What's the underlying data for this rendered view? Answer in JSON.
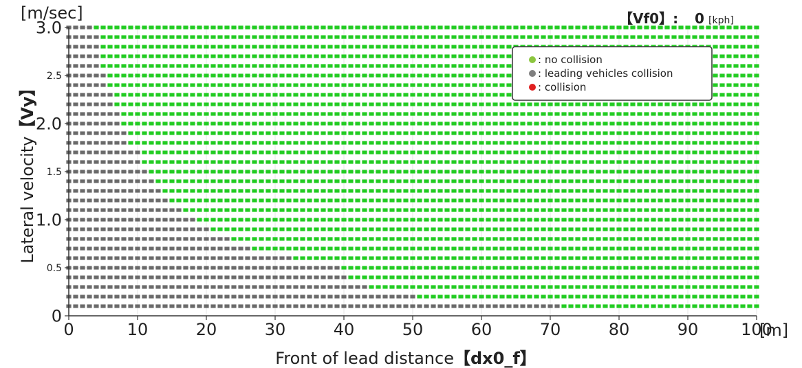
{
  "chart_data": {
    "type": "scatter",
    "title": "",
    "xlabel": "Front of lead distance",
    "xlabel_bracket": "dx0_f",
    "ylabel": "Lateral velocity",
    "ylabel_bracket": "Vy",
    "y_unit": "[m/sec]",
    "x_unit": "[m]",
    "xlim": [
      0,
      100
    ],
    "ylim": [
      0,
      3.0
    ],
    "x_ticks": [
      {
        "value": 0,
        "label": "0"
      },
      {
        "value": 10,
        "label": "10"
      },
      {
        "value": 20,
        "label": "20"
      },
      {
        "value": 30,
        "label": "30"
      },
      {
        "value": 40,
        "label": "40"
      },
      {
        "value": 50,
        "label": "50"
      },
      {
        "value": 60,
        "label": "60"
      },
      {
        "value": 70,
        "label": "70"
      },
      {
        "value": 80,
        "label": "80"
      },
      {
        "value": 90,
        "label": "90"
      },
      {
        "value": 100,
        "label": "100"
      }
    ],
    "y_ticks": [
      {
        "value": 0,
        "label": "0",
        "major": true
      },
      {
        "value": 0.5,
        "label": "0.5",
        "major": false
      },
      {
        "value": 1.0,
        "label": "1.0",
        "major": true
      },
      {
        "value": 1.5,
        "label": "1.5",
        "major": false
      },
      {
        "value": 2.0,
        "label": "2.0",
        "major": true
      },
      {
        "value": 2.5,
        "label": "2.5",
        "major": false
      },
      {
        "value": 3.0,
        "label": "3.0",
        "major": true
      }
    ],
    "grid": true,
    "legend_position": "top-right",
    "legend": [
      {
        "label": ": no collision",
        "color": "#8cc63f"
      },
      {
        "label": ": leading vehicles collision",
        "color": "#808080"
      },
      {
        "label": ": collision",
        "color": "#e02020"
      }
    ],
    "series_colors": {
      "no_collision": "#22cc22",
      "leading_collision": "#6a6a6a"
    },
    "grid_sampling": {
      "x_min": 0,
      "x_max": 100,
      "x_step": 1,
      "y_min": 0.1,
      "y_max": 3.0,
      "y_step": 0.1
    },
    "boundary": {
      "description": "leading vehicles collision for dx0_f below boundary_x at each Vy, no collision above",
      "vy": [
        0.1,
        0.2,
        0.3,
        0.4,
        0.5,
        0.6,
        0.7,
        0.8,
        0.9,
        1.0,
        1.2,
        1.4,
        1.6,
        1.8,
        2.0,
        2.2,
        2.4,
        2.6,
        2.8,
        3.0
      ],
      "boundary_x": [
        72,
        51,
        44,
        41,
        40,
        33,
        27,
        24,
        21,
        19,
        15,
        13,
        11,
        9,
        8,
        7,
        6,
        5,
        5,
        4
      ]
    },
    "annotations": [
      {
        "label": "【Vf0】:",
        "value": "0",
        "unit": "[kph]"
      }
    ]
  }
}
